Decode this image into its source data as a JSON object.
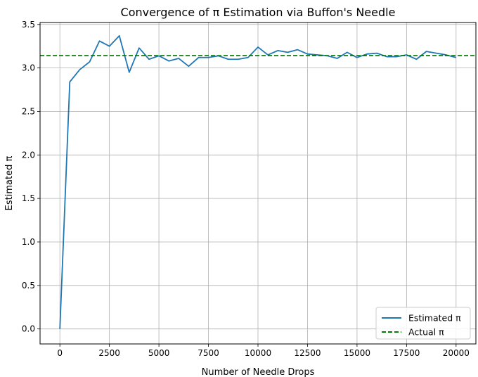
{
  "chart_data": {
    "type": "line",
    "title": "Convergence of π Estimation via Buffon's Needle",
    "xlabel": "Number of Needle Drops",
    "ylabel": "Estimated π",
    "xlim": [
      -1000,
      21000
    ],
    "ylim": [
      -0.1725,
      3.5225
    ],
    "xticks": [
      0,
      2500,
      5000,
      7500,
      10000,
      12500,
      15000,
      17500,
      20000
    ],
    "yticks": [
      0.0,
      0.5,
      1.0,
      1.5,
      2.0,
      2.5,
      3.0,
      3.5
    ],
    "xtick_labels": [
      "0",
      "2500",
      "5000",
      "7500",
      "10000",
      "12500",
      "15000",
      "17500",
      "20000"
    ],
    "ytick_labels": [
      "0.0",
      "0.5",
      "1.0",
      "1.5",
      "2.0",
      "2.5",
      "3.0",
      "3.5"
    ],
    "grid": true,
    "legend_position": "bottom-right",
    "series": [
      {
        "name": "Estimated π",
        "color": "#1f77b4",
        "style": "solid",
        "x": [
          0,
          500,
          1000,
          1500,
          2000,
          2500,
          3000,
          3500,
          4000,
          4500,
          5000,
          5500,
          6000,
          6500,
          7000,
          7500,
          8000,
          8500,
          9000,
          9500,
          10000,
          10500,
          11000,
          11500,
          12000,
          12500,
          13000,
          13500,
          14000,
          14500,
          15000,
          15500,
          16000,
          16500,
          17000,
          17500,
          18000,
          18500,
          19000,
          19500,
          20000
        ],
        "y": [
          0.0,
          2.84,
          2.98,
          3.07,
          3.31,
          3.25,
          3.37,
          2.95,
          3.23,
          3.1,
          3.14,
          3.08,
          3.11,
          3.02,
          3.12,
          3.12,
          3.14,
          3.1,
          3.1,
          3.12,
          3.24,
          3.15,
          3.2,
          3.18,
          3.21,
          3.16,
          3.15,
          3.14,
          3.11,
          3.18,
          3.12,
          3.16,
          3.17,
          3.13,
          3.13,
          3.15,
          3.1,
          3.19,
          3.17,
          3.15,
          3.12
        ]
      },
      {
        "name": "Actual π",
        "color": "#008000",
        "style": "dashed",
        "y_constant": 3.14159
      }
    ]
  }
}
